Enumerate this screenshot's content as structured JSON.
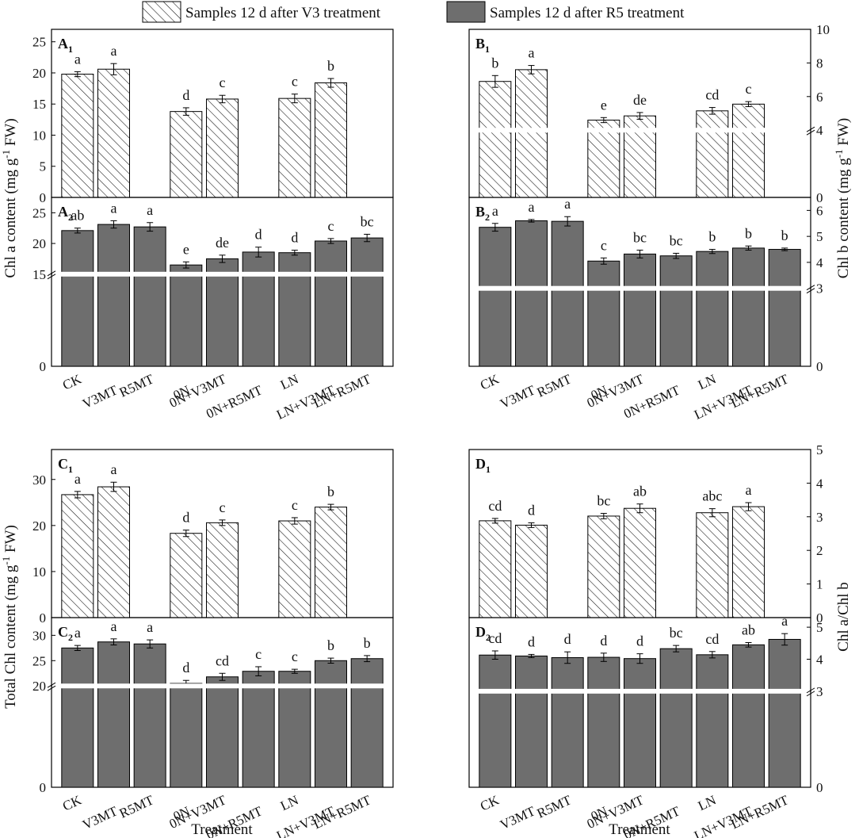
{
  "legend": {
    "v3": "Samples 12 d after V3 treatment",
    "r5": "Samples 12 d after R5 treatment"
  },
  "colors": {
    "bar_fill": "#6e6e6e",
    "hatch": "#111111",
    "axis": "#000000"
  },
  "categories": [
    "CK",
    "V3MT",
    "R5MT",
    "0N",
    "0N+V3MT",
    "0N+R5MT",
    "LN",
    "LN+V3MT",
    "LN+R5MT"
  ],
  "axis_titles": {
    "a": "Chl a content (mg g-1 FW)",
    "b": "Chl b content (mg g-1 FW)",
    "c": "Total Chl content (mg g-1 FW)",
    "d": "Chl a/Chl b",
    "x": "Treatment"
  },
  "chart_data": [
    {
      "id": "A1",
      "label": "A",
      "sub": "1",
      "type": "bar",
      "style": "hatched",
      "yticks": [
        0,
        5,
        10,
        15,
        20,
        25
      ],
      "tick_labels": [
        "0",
        "5",
        "10",
        "15",
        "20",
        "25"
      ],
      "ylim": [
        0,
        27
      ],
      "axis_side": "left",
      "bars": [
        {
          "cat": "CK",
          "value": 19.8,
          "err": 0.4,
          "sig": "a"
        },
        {
          "cat": "V3MT",
          "value": 20.6,
          "err": 0.9,
          "sig": "a"
        },
        {
          "cat": "0N",
          "value": 13.8,
          "err": 0.6,
          "sig": "d"
        },
        {
          "cat": "0N+V3MT",
          "value": 15.8,
          "err": 0.6,
          "sig": "c"
        },
        {
          "cat": "LN",
          "value": 15.9,
          "err": 0.7,
          "sig": "c"
        },
        {
          "cat": "LN+V3MT",
          "value": 18.4,
          "err": 0.7,
          "sig": "b"
        }
      ]
    },
    {
      "id": "A2",
      "label": "A",
      "sub": "2",
      "type": "bar",
      "style": "solid",
      "yticks": [
        0,
        15,
        20,
        25
      ],
      "tick_labels": [
        "0",
        "15",
        "20",
        "25"
      ],
      "ylim": [
        0,
        27.5
      ],
      "break": 15,
      "axis_side": "left",
      "bars": [
        {
          "cat": "CK",
          "value": 22.1,
          "err": 0.4,
          "sig": "ab"
        },
        {
          "cat": "V3MT",
          "value": 23.1,
          "err": 0.6,
          "sig": "a"
        },
        {
          "cat": "R5MT",
          "value": 22.7,
          "err": 0.7,
          "sig": "a"
        },
        {
          "cat": "0N",
          "value": 16.5,
          "err": 0.5,
          "sig": "e"
        },
        {
          "cat": "0N+V3MT",
          "value": 17.5,
          "err": 0.6,
          "sig": "de"
        },
        {
          "cat": "0N+R5MT",
          "value": 18.6,
          "err": 0.8,
          "sig": "d"
        },
        {
          "cat": "LN",
          "value": 18.5,
          "err": 0.4,
          "sig": "d"
        },
        {
          "cat": "LN+V3MT",
          "value": 20.4,
          "err": 0.4,
          "sig": "c"
        },
        {
          "cat": "LN+R5MT",
          "value": 20.9,
          "err": 0.6,
          "sig": "bc"
        }
      ]
    },
    {
      "id": "B1",
      "label": "B",
      "sub": "1",
      "type": "bar",
      "style": "hatched",
      "yticks": [
        0,
        4,
        6,
        8,
        10
      ],
      "tick_labels": [
        "0",
        "4",
        "6",
        "8",
        "10"
      ],
      "ylim": [
        0,
        10
      ],
      "break": 4,
      "axis_side": "right",
      "bars": [
        {
          "cat": "CK",
          "value": 6.9,
          "err": 0.35,
          "sig": "b"
        },
        {
          "cat": "V3MT",
          "value": 7.6,
          "err": 0.25,
          "sig": "a"
        },
        {
          "cat": "0N",
          "value": 4.6,
          "err": 0.15,
          "sig": "e"
        },
        {
          "cat": "0N+V3MT",
          "value": 4.85,
          "err": 0.2,
          "sig": "de"
        },
        {
          "cat": "LN",
          "value": 5.15,
          "err": 0.2,
          "sig": "cd"
        },
        {
          "cat": "LN+V3MT",
          "value": 5.55,
          "err": 0.15,
          "sig": "c"
        }
      ]
    },
    {
      "id": "B2",
      "label": "B",
      "sub": "2",
      "type": "bar",
      "style": "solid",
      "yticks": [
        0,
        3,
        4,
        5,
        6
      ],
      "tick_labels": [
        "0",
        "3",
        "4",
        "5",
        "6"
      ],
      "ylim": [
        0,
        6.5
      ],
      "break": 3,
      "axis_side": "right",
      "bars": [
        {
          "cat": "CK",
          "value": 5.35,
          "err": 0.15,
          "sig": "a"
        },
        {
          "cat": "V3MT",
          "value": 5.6,
          "err": 0.05,
          "sig": "a"
        },
        {
          "cat": "R5MT",
          "value": 5.58,
          "err": 0.18,
          "sig": "a"
        },
        {
          "cat": "0N",
          "value": 4.05,
          "err": 0.12,
          "sig": "c"
        },
        {
          "cat": "0N+V3MT",
          "value": 4.32,
          "err": 0.15,
          "sig": "bc"
        },
        {
          "cat": "0N+R5MT",
          "value": 4.25,
          "err": 0.1,
          "sig": "bc"
        },
        {
          "cat": "LN",
          "value": 4.42,
          "err": 0.08,
          "sig": "b"
        },
        {
          "cat": "LN+V3MT",
          "value": 4.55,
          "err": 0.08,
          "sig": "b"
        },
        {
          "cat": "LN+R5MT",
          "value": 4.5,
          "err": 0.05,
          "sig": "b"
        }
      ]
    },
    {
      "id": "C1",
      "label": "C",
      "sub": "1",
      "type": "bar",
      "style": "hatched",
      "yticks": [
        0,
        10,
        20,
        30
      ],
      "tick_labels": [
        "0",
        "10",
        "20",
        "30"
      ],
      "ylim": [
        0,
        36.5
      ],
      "axis_side": "left",
      "bars": [
        {
          "cat": "CK",
          "value": 26.7,
          "err": 0.7,
          "sig": "a"
        },
        {
          "cat": "V3MT",
          "value": 28.4,
          "err": 1.0,
          "sig": "a"
        },
        {
          "cat": "0N",
          "value": 18.3,
          "err": 0.7,
          "sig": "d"
        },
        {
          "cat": "0N+V3MT",
          "value": 20.6,
          "err": 0.6,
          "sig": "c"
        },
        {
          "cat": "LN",
          "value": 21.0,
          "err": 0.7,
          "sig": "c"
        },
        {
          "cat": "LN+V3MT",
          "value": 24.0,
          "err": 0.6,
          "sig": "b"
        }
      ]
    },
    {
      "id": "C2",
      "label": "C",
      "sub": "2",
      "type": "bar",
      "style": "solid",
      "yticks": [
        0,
        20,
        25,
        30
      ],
      "tick_labels": [
        "0",
        "20",
        "25",
        "30"
      ],
      "ylim": [
        0,
        33.5
      ],
      "break": 20,
      "axis_side": "left",
      "bars": [
        {
          "cat": "CK",
          "value": 27.5,
          "err": 0.5,
          "sig": "a"
        },
        {
          "cat": "V3MT",
          "value": 28.7,
          "err": 0.6,
          "sig": "a"
        },
        {
          "cat": "R5MT",
          "value": 28.3,
          "err": 0.8,
          "sig": "a"
        },
        {
          "cat": "0N",
          "value": 20.5,
          "err": 0.6,
          "sig": "d"
        },
        {
          "cat": "0N+V3MT",
          "value": 21.8,
          "err": 0.7,
          "sig": "cd"
        },
        {
          "cat": "0N+R5MT",
          "value": 22.9,
          "err": 0.9,
          "sig": "c"
        },
        {
          "cat": "LN",
          "value": 22.9,
          "err": 0.4,
          "sig": "c"
        },
        {
          "cat": "LN+V3MT",
          "value": 25.0,
          "err": 0.5,
          "sig": "b"
        },
        {
          "cat": "LN+R5MT",
          "value": 25.4,
          "err": 0.6,
          "sig": "b"
        }
      ]
    },
    {
      "id": "D1",
      "label": "D",
      "sub": "1",
      "type": "bar",
      "style": "hatched",
      "yticks": [
        0,
        1,
        2,
        3,
        4,
        5
      ],
      "tick_labels": [
        "0",
        "1",
        "2",
        "3",
        "4",
        "5"
      ],
      "ylim": [
        0,
        5
      ],
      "axis_side": "right",
      "bars": [
        {
          "cat": "CK",
          "value": 2.88,
          "err": 0.07,
          "sig": "cd"
        },
        {
          "cat": "V3MT",
          "value": 2.75,
          "err": 0.07,
          "sig": "d"
        },
        {
          "cat": "0N",
          "value": 3.02,
          "err": 0.08,
          "sig": "bc"
        },
        {
          "cat": "0N+V3MT",
          "value": 3.25,
          "err": 0.13,
          "sig": "ab"
        },
        {
          "cat": "LN",
          "value": 3.12,
          "err": 0.12,
          "sig": "abc"
        },
        {
          "cat": "LN+V3MT",
          "value": 3.3,
          "err": 0.12,
          "sig": "a"
        }
      ]
    },
    {
      "id": "D2",
      "label": "D",
      "sub": "2",
      "type": "bar",
      "style": "solid",
      "yticks": [
        0,
        3,
        4,
        5
      ],
      "tick_labels": [
        "0",
        "3",
        "4",
        "5"
      ],
      "ylim": [
        0,
        5.3
      ],
      "break": 3,
      "axis_side": "right",
      "bars": [
        {
          "cat": "CK",
          "value": 4.13,
          "err": 0.13,
          "sig": "cd"
        },
        {
          "cat": "V3MT",
          "value": 4.1,
          "err": 0.05,
          "sig": "d"
        },
        {
          "cat": "R5MT",
          "value": 4.05,
          "err": 0.18,
          "sig": "d"
        },
        {
          "cat": "0N",
          "value": 4.06,
          "err": 0.13,
          "sig": "d"
        },
        {
          "cat": "0N+V3MT",
          "value": 4.02,
          "err": 0.15,
          "sig": "d"
        },
        {
          "cat": "0N+R5MT",
          "value": 4.33,
          "err": 0.1,
          "sig": "bc"
        },
        {
          "cat": "LN",
          "value": 4.14,
          "err": 0.1,
          "sig": "cd"
        },
        {
          "cat": "LN+V3MT",
          "value": 4.45,
          "err": 0.07,
          "sig": "ab"
        },
        {
          "cat": "LN+R5MT",
          "value": 4.62,
          "err": 0.18,
          "sig": "a"
        }
      ]
    }
  ]
}
